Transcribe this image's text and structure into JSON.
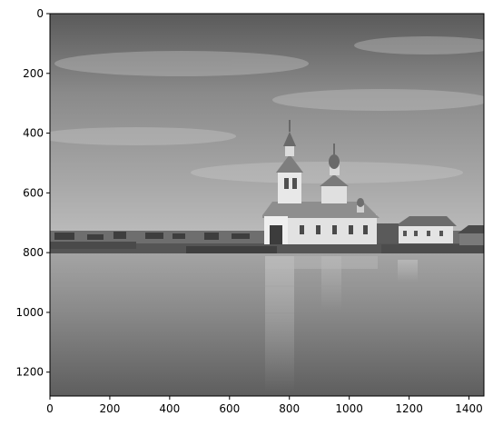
{
  "chart_data": {
    "type": "image",
    "xlim": [
      0,
      1450
    ],
    "ylim": [
      1280,
      0
    ],
    "y_inverted": true,
    "x_ticks": [
      0,
      200,
      400,
      600,
      800,
      1000,
      1200,
      1400
    ],
    "y_ticks": [
      0,
      200,
      400,
      600,
      800,
      1000,
      1200
    ],
    "x_tick_labels": [
      "0",
      "200",
      "400",
      "600",
      "800",
      "1000",
      "1200",
      "1400"
    ],
    "y_tick_labels": [
      "0",
      "200",
      "400",
      "600",
      "800",
      "1000",
      "1200"
    ],
    "colormap": "gray",
    "horizon_y": 805,
    "church_center_x": 810
  },
  "colors": {
    "sky_top": "#5e5e5e",
    "sky_bottom": "#b4b4b4",
    "water_top": "#9a9a9a",
    "water_bottom": "#5a5a5a",
    "church_wall": "#e6e6e6",
    "shore": "#4a4a4a"
  }
}
